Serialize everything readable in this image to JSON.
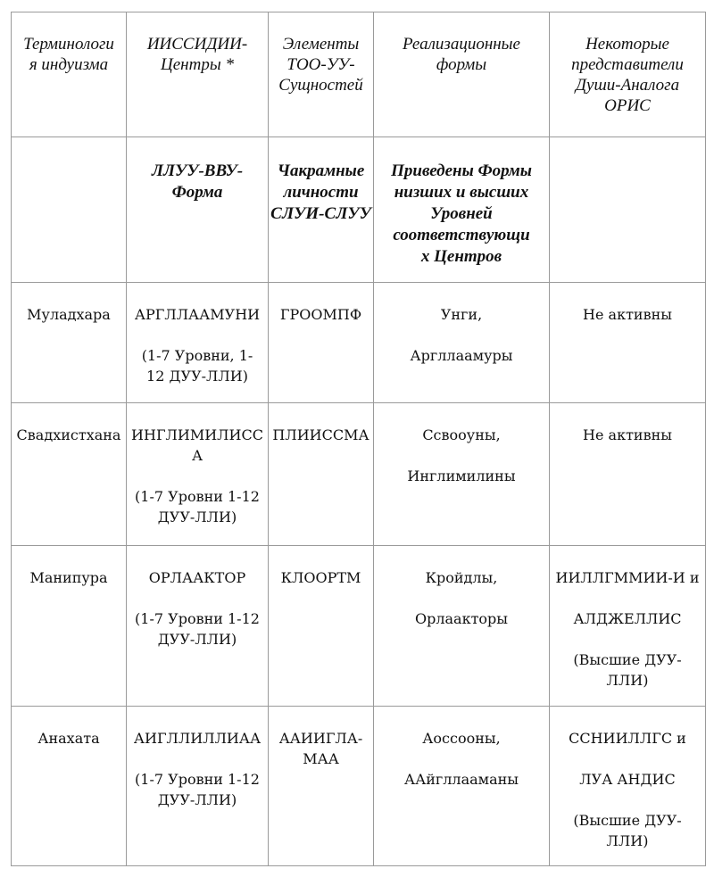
{
  "headers": [
    "Терминологи\nя индуизма",
    "ИИССИДИИ-\nЦентры *",
    "Элементы\nТОО-УУ-\nСущностей",
    "Реализационные\nформы",
    "Некоторые\nпредставители\nДуши-Аналога\nОРИС"
  ],
  "subheaders": [
    "",
    "ЛЛУУ-ВВУ-\nФорма",
    "Чакрамные\nличности\nСЛУИ-СЛУУ",
    "Приведены Формы\nнизших и высших\nУровней\nсоответствующи\nх Центров",
    ""
  ],
  "rows": [
    [
      "Муладхара",
      "АРГЛЛААМУНИ\n\n(1-7 Уровни, 1-\n12 ДУУ-ЛЛИ)",
      "ГРООМПФ",
      "Унги,\n\nАргллаамуры",
      "Не активны"
    ],
    [
      "Свадхистхана",
      "ИНГЛИМИЛИСС\nА\n\n(1-7 Уровни 1-12\nДУУ-ЛЛИ)",
      "ПЛИИССМА",
      "Ссвооуны,\n\nИнглимилины",
      "Не активны"
    ],
    [
      "Манипура",
      "ОРЛААКТОР\n\n(1-7 Уровни 1-12\nДУУ-ЛЛИ)",
      "КЛООРТМ",
      "Кройдлы,\n\nОрлаакторы",
      "ИИЛЛГММИИ-И и\n\nАЛДЖЕЛЛИС\n\n(Высшие ДУУ-\nЛЛИ)"
    ],
    [
      "Анахата",
      "АИГЛЛИЛЛИАА\n\n(1-7 Уровни 1-12\nДУУ-ЛЛИ)",
      "ААИИГЛА-\nМАА",
      "Аоссооны,\n\nААйгллааманы",
      "ССНИИЛЛГС и\n\nЛУА АНДИС\n\n(Высшие ДУУ-\nЛЛИ)"
    ]
  ]
}
